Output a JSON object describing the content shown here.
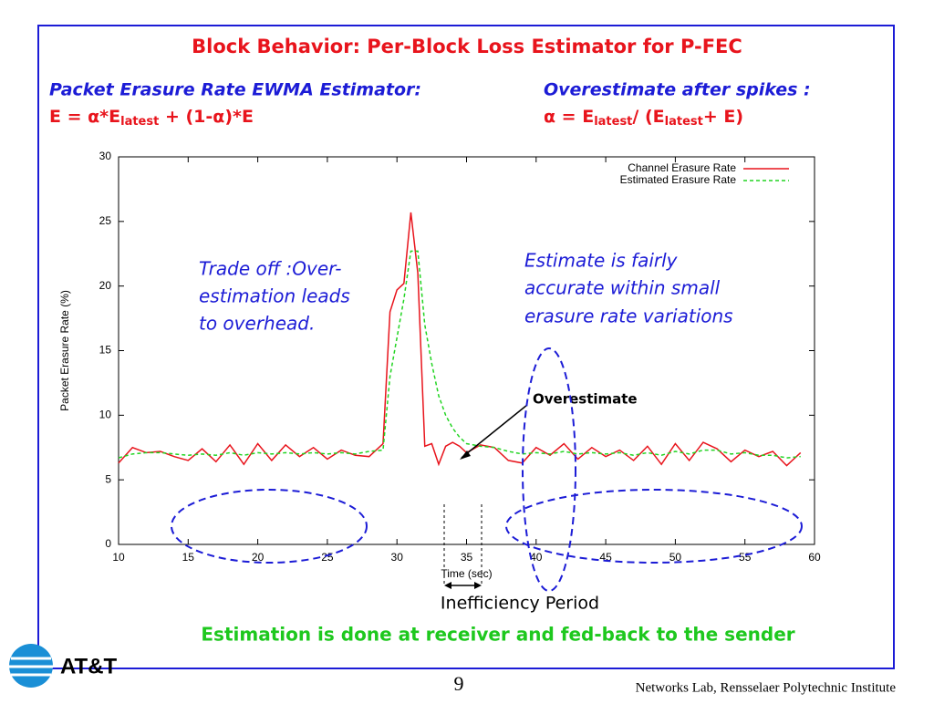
{
  "slide": {
    "title": "Block Behavior: Per-Block Loss Estimator for P-FEC",
    "left_header": {
      "heading": "Packet Erasure Rate EWMA Estimator:",
      "formula": [
        "E = α*E",
        "latest",
        "  + (1-α)*E"
      ]
    },
    "right_header": {
      "heading": "Overestimate after spikes :",
      "formula": [
        "α = E",
        "latest",
        "/ (E",
        "latest",
        "+ E)"
      ]
    },
    "note_left": [
      "Trade off :Over-",
      "estimation leads",
      "to overhead."
    ],
    "note_right": [
      "Estimate is fairly",
      "accurate within small",
      "erasure rate variations"
    ],
    "overestimate": "Overestimate",
    "inefficiency": "Inefficiency Period",
    "footer": "Estimation is done at receiver and fed-back to the sender",
    "logo": "AT&T",
    "page": "9",
    "credit": "Networks Lab, Rensselaer Polytechnic Institute"
  },
  "chart_data": {
    "type": "line",
    "x_label": "Time (sec)",
    "y_label": "Packet Erasure Rate (%)",
    "x": [
      10,
      11,
      12,
      13,
      14,
      15,
      16,
      17,
      18,
      19,
      20,
      21,
      22,
      23,
      24,
      25,
      26,
      27,
      28,
      29,
      29.5,
      30,
      30.5,
      31,
      31.5,
      32,
      32.5,
      33,
      33.5,
      34,
      34.5,
      35,
      36,
      37,
      38,
      39,
      40,
      41,
      42,
      43,
      44,
      45,
      46,
      47,
      48,
      49,
      50,
      51,
      52,
      53,
      54,
      55,
      56,
      57,
      58,
      59
    ],
    "series": [
      {
        "name": "Channel Erasure Rate",
        "color": "#e8141c",
        "dashed": false,
        "values": [
          6.3,
          7.5,
          7.1,
          7.2,
          6.8,
          6.5,
          7.4,
          6.4,
          7.7,
          6.2,
          7.8,
          6.5,
          7.7,
          6.8,
          7.5,
          6.6,
          7.3,
          6.9,
          6.8,
          7.8,
          18,
          19.7,
          20.2,
          25.7,
          21,
          7.6,
          7.8,
          6.2,
          7.6,
          7.9,
          7.6,
          7.1,
          7.7,
          7.5,
          6.5,
          6.3,
          7.5,
          6.9,
          7.8,
          6.6,
          7.5,
          6.8,
          7.3,
          6.5,
          7.6,
          6.2,
          7.8,
          6.5,
          7.9,
          7.4,
          6.4,
          7.3,
          6.8,
          7.2,
          6.1,
          7.1
        ]
      },
      {
        "name": "Estimated Erasure Rate",
        "color": "#22d422",
        "dashed": true,
        "values": [
          6.7,
          7.0,
          7.1,
          7.1,
          7.0,
          6.9,
          7.0,
          6.9,
          7.1,
          6.9,
          7.1,
          7.0,
          7.1,
          7.0,
          7.1,
          7.0,
          7.1,
          7.0,
          7.2,
          7.3,
          13,
          16,
          19,
          22.7,
          22.7,
          17,
          14,
          11.5,
          10,
          9,
          8.3,
          7.8,
          7.6,
          7.5,
          7.2,
          7.0,
          7.1,
          7.0,
          7.2,
          7.0,
          7.1,
          7.0,
          7.1,
          6.9,
          7.1,
          6.9,
          7.2,
          7.0,
          7.3,
          7.3,
          7.0,
          7.1,
          6.9,
          6.9,
          6.7,
          6.8
        ]
      }
    ],
    "xlim": [
      10,
      60
    ],
    "xticks": [
      10,
      15,
      20,
      25,
      30,
      35,
      40,
      45,
      50,
      55,
      60
    ],
    "ylim": [
      0,
      30
    ],
    "yticks": [
      0,
      5,
      10,
      15,
      20,
      25,
      30
    ],
    "legend": "upper right"
  }
}
